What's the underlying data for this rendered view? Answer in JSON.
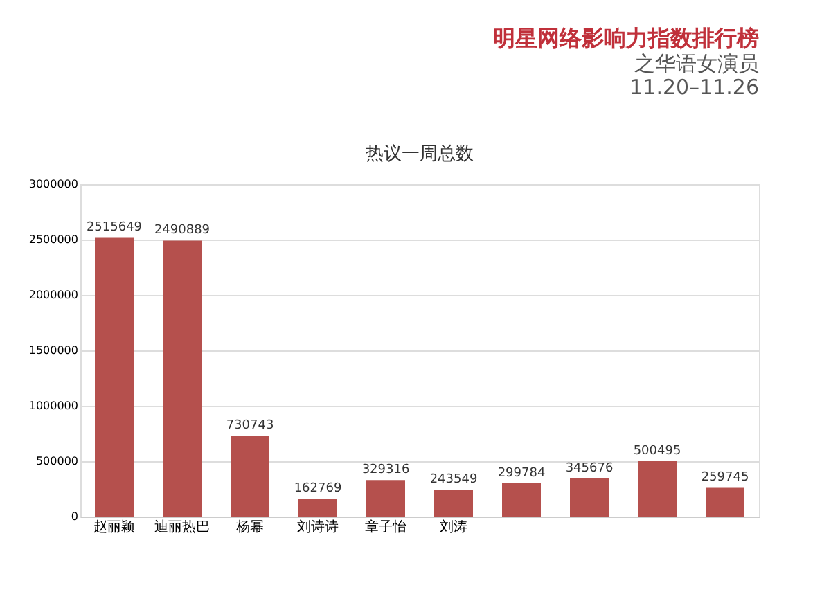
{
  "chart_data": {
    "type": "bar",
    "title": "明星网络影响力指数排行榜",
    "subtitle": "之华语女演员",
    "annotations": [
      "11.20–11.26",
      "热议一周总数"
    ],
    "categories": [
      "赵丽颖",
      "迪丽热巴",
      "杨幂",
      "刘诗诗",
      "章子怡",
      "刘涛",
      null,
      null,
      null,
      null
    ],
    "values": [
      2515649,
      2490889,
      730743,
      162769,
      329316,
      243549,
      299784,
      345676,
      500495,
      259745
    ],
    "color": "#b5504d",
    "ylim": [
      0,
      3000000
    ],
    "yticks": [
      0,
      500000,
      1000000,
      1500000,
      2000000,
      2500000,
      3000000
    ],
    "grid": "y",
    "data_labels": true
  }
}
